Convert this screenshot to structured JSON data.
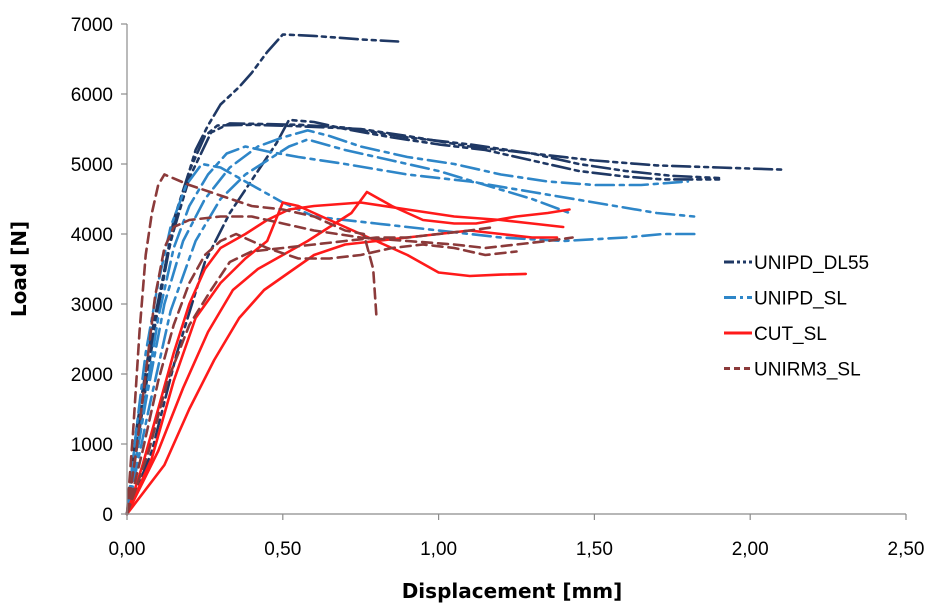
{
  "chart_data": {
    "type": "line",
    "title": "",
    "xlabel": "Displacement [mm]",
    "ylabel": "Load [N]",
    "xlim": [
      0,
      2.5
    ],
    "ylim": [
      0,
      7000
    ],
    "x_ticks": [
      "0,00",
      "0,50",
      "1,00",
      "1,50",
      "2,00",
      "2,50"
    ],
    "y_ticks": [
      "0",
      "1000",
      "2000",
      "3000",
      "4000",
      "5000",
      "6000",
      "7000"
    ],
    "grid": false,
    "legend_position": "right",
    "series": [
      {
        "name": "UNIPD_DL55",
        "color": "#1f3864",
        "dash": "dash-dot-dot",
        "curves": [
          [
            [
              0,
              0
            ],
            [
              0.03,
              1200
            ],
            [
              0.08,
              2600
            ],
            [
              0.13,
              3700
            ],
            [
              0.18,
              4600
            ],
            [
              0.22,
              5200
            ],
            [
              0.26,
              5550
            ],
            [
              0.3,
              5850
            ],
            [
              0.36,
              6100
            ],
            [
              0.4,
              6300
            ],
            [
              0.45,
              6600
            ],
            [
              0.5,
              6850
            ],
            [
              0.6,
              6830
            ],
            [
              0.75,
              6780
            ],
            [
              0.87,
              6750
            ]
          ],
          [
            [
              0,
              0
            ],
            [
              0.05,
              1500
            ],
            [
              0.1,
              3000
            ],
            [
              0.15,
              4200
            ],
            [
              0.2,
              4900
            ],
            [
              0.25,
              5400
            ],
            [
              0.29,
              5550
            ],
            [
              0.4,
              5560
            ],
            [
              0.55,
              5540
            ],
            [
              0.75,
              5500
            ],
            [
              0.9,
              5400
            ],
            [
              1.1,
              5250
            ],
            [
              1.3,
              5150
            ],
            [
              1.5,
              5050
            ],
            [
              1.7,
              4980
            ],
            [
              1.9,
              4950
            ],
            [
              2.1,
              4920
            ]
          ],
          [
            [
              0,
              0
            ],
            [
              0.04,
              1300
            ],
            [
              0.09,
              2700
            ],
            [
              0.14,
              3900
            ],
            [
              0.2,
              4800
            ],
            [
              0.27,
              5450
            ],
            [
              0.33,
              5580
            ],
            [
              0.45,
              5570
            ],
            [
              0.55,
              5560
            ],
            [
              0.7,
              5520
            ],
            [
              0.9,
              5380
            ],
            [
              1.1,
              5280
            ],
            [
              1.3,
              5150
            ],
            [
              1.45,
              5000
            ],
            [
              1.6,
              4900
            ],
            [
              1.75,
              4830
            ],
            [
              1.9,
              4800
            ]
          ],
          [
            [
              0,
              0
            ],
            [
              0.08,
              900
            ],
            [
              0.16,
              2300
            ],
            [
              0.25,
              3600
            ],
            [
              0.33,
              4300
            ],
            [
              0.42,
              4900
            ],
            [
              0.48,
              5300
            ],
            [
              0.52,
              5630
            ],
            [
              0.6,
              5600
            ],
            [
              0.7,
              5500
            ],
            [
              0.85,
              5380
            ],
            [
              1.0,
              5280
            ],
            [
              1.15,
              5200
            ],
            [
              1.3,
              5050
            ],
            [
              1.45,
              4900
            ],
            [
              1.6,
              4820
            ],
            [
              1.72,
              4780
            ],
            [
              1.9,
              4780
            ]
          ]
        ]
      },
      {
        "name": "UNIPD_SL",
        "color": "#2e86c8",
        "dash": "dash-dot",
        "curves": [
          [
            [
              0,
              0
            ],
            [
              0.03,
              1200
            ],
            [
              0.06,
              2300
            ],
            [
              0.1,
              3300
            ],
            [
              0.14,
              4100
            ],
            [
              0.19,
              4700
            ],
            [
              0.24,
              5000
            ],
            [
              0.3,
              4950
            ],
            [
              0.4,
              4700
            ],
            [
              0.5,
              4450
            ],
            [
              0.6,
              4250
            ],
            [
              0.8,
              4150
            ],
            [
              1.0,
              4050
            ],
            [
              1.2,
              3950
            ],
            [
              1.4,
              3900
            ],
            [
              1.6,
              3950
            ],
            [
              1.72,
              4000
            ],
            [
              1.83,
              4000
            ]
          ],
          [
            [
              0,
              0
            ],
            [
              0.05,
              1400
            ],
            [
              0.1,
              2800
            ],
            [
              0.15,
              3800
            ],
            [
              0.2,
              4400
            ],
            [
              0.26,
              4850
            ],
            [
              0.32,
              5150
            ],
            [
              0.38,
              5250
            ],
            [
              0.45,
              5180
            ],
            [
              0.55,
              5100
            ],
            [
              0.7,
              5000
            ],
            [
              0.9,
              4850
            ],
            [
              1.1,
              4750
            ],
            [
              1.3,
              4600
            ],
            [
              1.5,
              4450
            ],
            [
              1.7,
              4300
            ],
            [
              1.82,
              4250
            ]
          ],
          [
            [
              0,
              0
            ],
            [
              0.06,
              1600
            ],
            [
              0.12,
              3000
            ],
            [
              0.18,
              3900
            ],
            [
              0.25,
              4500
            ],
            [
              0.33,
              4950
            ],
            [
              0.42,
              5250
            ],
            [
              0.5,
              5380
            ],
            [
              0.58,
              5480
            ],
            [
              0.65,
              5400
            ],
            [
              0.75,
              5250
            ],
            [
              0.9,
              5100
            ],
            [
              1.05,
              5000
            ],
            [
              1.2,
              4850
            ],
            [
              1.35,
              4750
            ],
            [
              1.5,
              4700
            ],
            [
              1.65,
              4700
            ],
            [
              1.8,
              4750
            ]
          ],
          [
            [
              0,
              0
            ],
            [
              0.07,
              1500
            ],
            [
              0.14,
              2900
            ],
            [
              0.22,
              3900
            ],
            [
              0.3,
              4500
            ],
            [
              0.38,
              4850
            ],
            [
              0.45,
              5050
            ],
            [
              0.52,
              5250
            ],
            [
              0.58,
              5350
            ],
            [
              0.7,
              5200
            ],
            [
              0.85,
              5050
            ],
            [
              1.0,
              4900
            ],
            [
              1.15,
              4700
            ],
            [
              1.3,
              4500
            ],
            [
              1.42,
              4300
            ]
          ]
        ]
      },
      {
        "name": "CUT_SL",
        "color": "#ff1a1a",
        "dash": "solid",
        "curves": [
          [
            [
              0,
              0
            ],
            [
              0.05,
              700
            ],
            [
              0.1,
              1500
            ],
            [
              0.15,
              2300
            ],
            [
              0.2,
              3000
            ],
            [
              0.25,
              3500
            ],
            [
              0.3,
              3800
            ],
            [
              0.38,
              4000
            ],
            [
              0.45,
              4200
            ],
            [
              0.52,
              4350
            ],
            [
              0.6,
              4400
            ],
            [
              0.75,
              4450
            ],
            [
              0.9,
              4350
            ],
            [
              1.05,
              4250
            ],
            [
              1.2,
              4200
            ],
            [
              1.3,
              4150
            ],
            [
              1.4,
              4100
            ]
          ],
          [
            [
              0,
              0
            ],
            [
              0.08,
              800
            ],
            [
              0.15,
              1900
            ],
            [
              0.22,
              2800
            ],
            [
              0.3,
              3300
            ],
            [
              0.38,
              3650
            ],
            [
              0.45,
              3900
            ],
            [
              0.5,
              4450
            ],
            [
              0.55,
              4400
            ],
            [
              0.65,
              4200
            ],
            [
              0.8,
              3900
            ],
            [
              0.9,
              3700
            ],
            [
              1.0,
              3450
            ],
            [
              1.1,
              3400
            ],
            [
              1.2,
              3420
            ],
            [
              1.28,
              3430
            ]
          ],
          [
            [
              0,
              0
            ],
            [
              0.1,
              900
            ],
            [
              0.18,
              1800
            ],
            [
              0.26,
              2600
            ],
            [
              0.34,
              3200
            ],
            [
              0.42,
              3500
            ],
            [
              0.5,
              3700
            ],
            [
              0.58,
              3900
            ],
            [
              0.65,
              4100
            ],
            [
              0.72,
              4300
            ],
            [
              0.77,
              4600
            ],
            [
              0.85,
              4400
            ],
            [
              0.95,
              4200
            ],
            [
              1.05,
              4150
            ],
            [
              1.12,
              4150
            ],
            [
              1.25,
              4250
            ],
            [
              1.35,
              4300
            ],
            [
              1.42,
              4350
            ]
          ],
          [
            [
              0,
              0
            ],
            [
              0.12,
              700
            ],
            [
              0.2,
              1500
            ],
            [
              0.28,
              2200
            ],
            [
              0.36,
              2800
            ],
            [
              0.44,
              3200
            ],
            [
              0.52,
              3450
            ],
            [
              0.6,
              3700
            ],
            [
              0.7,
              3850
            ],
            [
              0.8,
              3900
            ],
            [
              0.9,
              3950
            ],
            [
              1.0,
              4000
            ],
            [
              1.1,
              4050
            ],
            [
              1.2,
              4000
            ],
            [
              1.3,
              3950
            ],
            [
              1.38,
              3950
            ]
          ]
        ]
      },
      {
        "name": "UNIRM3_SL",
        "color": "#8b3a3a",
        "dash": "dash",
        "curves": [
          [
            [
              0,
              0
            ],
            [
              0.02,
              1200
            ],
            [
              0.04,
              2600
            ],
            [
              0.06,
              3700
            ],
            [
              0.08,
              4300
            ],
            [
              0.1,
              4700
            ],
            [
              0.12,
              4850
            ],
            [
              0.2,
              4700
            ],
            [
              0.3,
              4550
            ],
            [
              0.4,
              4400
            ],
            [
              0.5,
              4350
            ],
            [
              0.6,
              4250
            ],
            [
              0.7,
              4050
            ],
            [
              0.76,
              4000
            ],
            [
              0.79,
              3500
            ],
            [
              0.8,
              2850
            ]
          ],
          [
            [
              0,
              0
            ],
            [
              0.03,
              900
            ],
            [
              0.06,
              2000
            ],
            [
              0.09,
              3100
            ],
            [
              0.12,
              3800
            ],
            [
              0.15,
              4100
            ],
            [
              0.2,
              4200
            ],
            [
              0.3,
              4250
            ],
            [
              0.4,
              4250
            ],
            [
              0.5,
              4150
            ],
            [
              0.6,
              4050
            ],
            [
              0.75,
              3950
            ],
            [
              0.9,
              3900
            ],
            [
              1.05,
              3850
            ],
            [
              1.15,
              3800
            ],
            [
              1.25,
              3850
            ],
            [
              1.35,
              3900
            ],
            [
              1.43,
              3950
            ]
          ],
          [
            [
              0,
              0
            ],
            [
              0.05,
              900
            ],
            [
              0.1,
              1900
            ],
            [
              0.15,
              2700
            ],
            [
              0.2,
              3300
            ],
            [
              0.25,
              3700
            ],
            [
              0.3,
              3900
            ],
            [
              0.35,
              4000
            ],
            [
              0.45,
              3800
            ],
            [
              0.55,
              3650
            ],
            [
              0.65,
              3650
            ],
            [
              0.75,
              3700
            ],
            [
              0.85,
              3800
            ],
            [
              0.95,
              3850
            ],
            [
              1.05,
              3800
            ],
            [
              1.15,
              3700
            ],
            [
              1.25,
              3750
            ]
          ],
          [
            [
              0,
              0
            ],
            [
              0.07,
              900
            ],
            [
              0.13,
              1900
            ],
            [
              0.2,
              2700
            ],
            [
              0.27,
              3200
            ],
            [
              0.33,
              3600
            ],
            [
              0.4,
              3750
            ],
            [
              0.5,
              3800
            ],
            [
              0.6,
              3850
            ],
            [
              0.7,
              3900
            ],
            [
              0.8,
              3950
            ],
            [
              0.9,
              3950
            ],
            [
              1.0,
              4000
            ],
            [
              1.1,
              4050
            ],
            [
              1.18,
              4100
            ]
          ]
        ]
      }
    ]
  }
}
